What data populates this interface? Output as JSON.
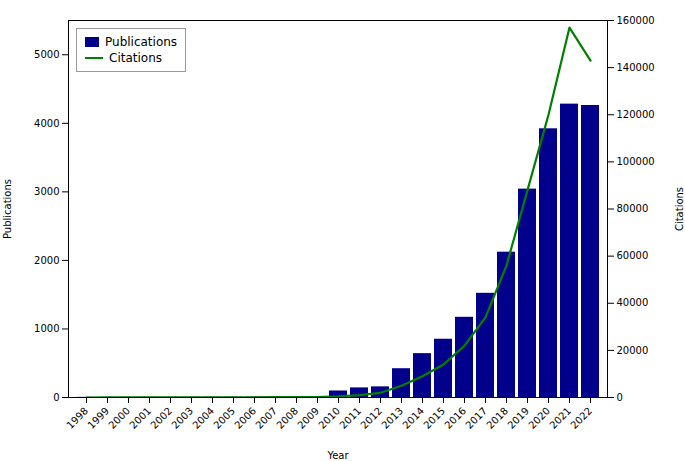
{
  "chart_data": {
    "type": "bar",
    "xlabel": "Year",
    "ylabel": "Publications",
    "y2label": "Citations",
    "categories": [
      "1998",
      "1999",
      "2000",
      "2001",
      "2002",
      "2003",
      "2004",
      "2005",
      "2006",
      "2007",
      "2008",
      "2009",
      "2010",
      "2011",
      "2012",
      "2013",
      "2014",
      "2015",
      "2016",
      "2017",
      "2018",
      "2019",
      "2020",
      "2021",
      "2022"
    ],
    "series": [
      {
        "name": "Publications",
        "type": "bar",
        "color": "#00008B",
        "values": [
          2,
          2,
          2,
          3,
          3,
          3,
          4,
          5,
          6,
          8,
          10,
          15,
          95,
          140,
          155,
          420,
          640,
          850,
          1170,
          1520,
          2120,
          3040,
          3920,
          4280,
          4260
        ]
      },
      {
        "name": "Citations",
        "type": "line",
        "color": "#008000",
        "axis": "y2",
        "values": [
          10,
          15,
          20,
          30,
          40,
          50,
          60,
          80,
          100,
          120,
          150,
          200,
          500,
          1000,
          2000,
          5000,
          9000,
          14000,
          22000,
          34000,
          56000,
          88000,
          120000,
          157000,
          143000
        ]
      }
    ],
    "ylim": [
      0,
      5500
    ],
    "yticks": [
      0,
      1000,
      2000,
      3000,
      4000,
      5000
    ],
    "y2lim": [
      0,
      160000
    ],
    "y2ticks": [
      0,
      20000,
      40000,
      60000,
      80000,
      100000,
      120000,
      140000,
      160000
    ],
    "grid": false,
    "legend": "upper left"
  }
}
